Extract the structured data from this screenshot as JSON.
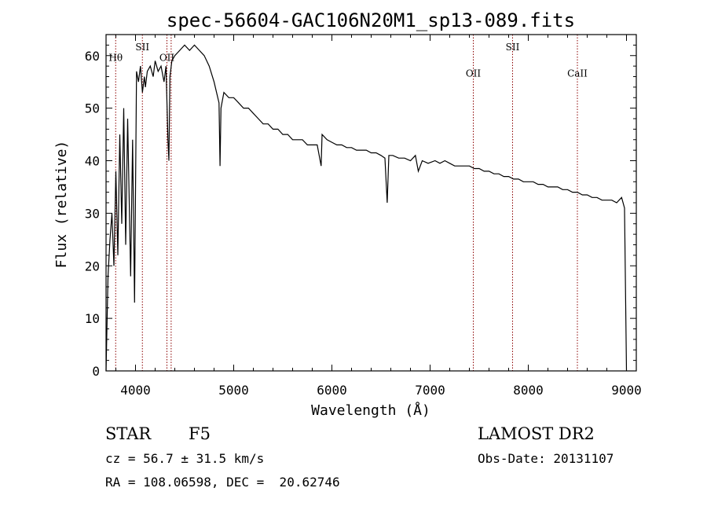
{
  "chart_data": {
    "type": "line",
    "title": "spec-56604-GAC106N20M1_sp13-089.fits",
    "xlabel": "Wavelength (Å)",
    "ylabel": "Flux (relative)",
    "xlim": [
      3700,
      9100
    ],
    "ylim": [
      0,
      64
    ],
    "xticks": [
      4000,
      5000,
      6000,
      7000,
      8000,
      9000
    ],
    "yticks": [
      0,
      10,
      20,
      30,
      40,
      50,
      60
    ],
    "grid": false,
    "series": [
      {
        "color": "#000000",
        "x": [
          3700,
          3720,
          3740,
          3760,
          3780,
          3800,
          3820,
          3840,
          3860,
          3880,
          3900,
          3920,
          3950,
          3970,
          3990,
          4010,
          4030,
          4050,
          4070,
          4090,
          4101,
          4120,
          4150,
          4180,
          4200,
          4230,
          4260,
          4290,
          4310,
          4330,
          4340,
          4350,
          4370,
          4400,
          4450,
          4500,
          4550,
          4600,
          4650,
          4700,
          4750,
          4800,
          4850,
          4861,
          4870,
          4900,
          4950,
          5000,
          5050,
          5100,
          5150,
          5200,
          5250,
          5300,
          5350,
          5400,
          5450,
          5500,
          5550,
          5600,
          5650,
          5700,
          5750,
          5800,
          5850,
          5890,
          5900,
          5950,
          6000,
          6050,
          6100,
          6150,
          6200,
          6250,
          6300,
          6350,
          6400,
          6450,
          6500,
          6540,
          6563,
          6580,
          6620,
          6680,
          6740,
          6800,
          6850,
          6880,
          6920,
          6980,
          7050,
          7100,
          7150,
          7200,
          7250,
          7300,
          7350,
          7400,
          7450,
          7500,
          7550,
          7600,
          7650,
          7700,
          7750,
          7800,
          7850,
          7900,
          7950,
          8000,
          8050,
          8100,
          8150,
          8200,
          8250,
          8300,
          8350,
          8400,
          8450,
          8500,
          8550,
          8600,
          8650,
          8700,
          8750,
          8800,
          8850,
          8900,
          8950,
          8980,
          9000
        ],
        "values": [
          0,
          18,
          25,
          30,
          20,
          38,
          22,
          45,
          28,
          50,
          24,
          48,
          18,
          44,
          13,
          57,
          55,
          58,
          53,
          56,
          54,
          57,
          58,
          56,
          59,
          57,
          58,
          55,
          58,
          44,
          40,
          56,
          59,
          60,
          61,
          62,
          61,
          62,
          61,
          60,
          58,
          55,
          51,
          39,
          50,
          53,
          52,
          52,
          51,
          50,
          50,
          49,
          48,
          47,
          47,
          46,
          46,
          45,
          45,
          44,
          44,
          44,
          43,
          43,
          43,
          39,
          45,
          44,
          43.5,
          43,
          43,
          42.5,
          42.5,
          42,
          42,
          42,
          41.5,
          41.5,
          41,
          40.5,
          32,
          41,
          41,
          40.5,
          40.5,
          40,
          41,
          38,
          40,
          39.5,
          40,
          39.5,
          40,
          39.5,
          39,
          39,
          39,
          39,
          38.5,
          38.5,
          38,
          38,
          37.5,
          37.5,
          37,
          37,
          36.5,
          36.5,
          36,
          36,
          36,
          35.5,
          35.5,
          35,
          35,
          35,
          34.5,
          34.5,
          34,
          34,
          33.5,
          33.5,
          33,
          33,
          32.5,
          32.5,
          32.5,
          32,
          33,
          31,
          0
        ]
      }
    ],
    "annotations": [
      {
        "label": "Hθ",
        "x": 3798,
        "y": 59
      },
      {
        "label": "SII",
        "x": 4070,
        "y": 61
      },
      {
        "label": "OII",
        "x": 4320,
        "y": 59
      },
      {
        "label": "OII",
        "x": 7440,
        "y": 56
      },
      {
        "label": "SII",
        "x": 7840,
        "y": 61
      },
      {
        "label": "CaII",
        "x": 8500,
        "y": 56
      }
    ],
    "reference_lines": [
      3798,
      4070,
      4320,
      4363,
      7440,
      7840,
      8500
    ]
  },
  "info": {
    "class_label": "STAR",
    "subclass": "F5",
    "survey": "LAMOST DR2",
    "redshift_text": "cz = 56.7 ± 31.5 km/s",
    "obs_date": "Obs-Date: 20131107",
    "coords": "RA = 108.06598, DEC =  20.62746"
  },
  "colors": {
    "spectrum": "#000000",
    "reference_line": "#8b0000",
    "axes": "#000000"
  }
}
